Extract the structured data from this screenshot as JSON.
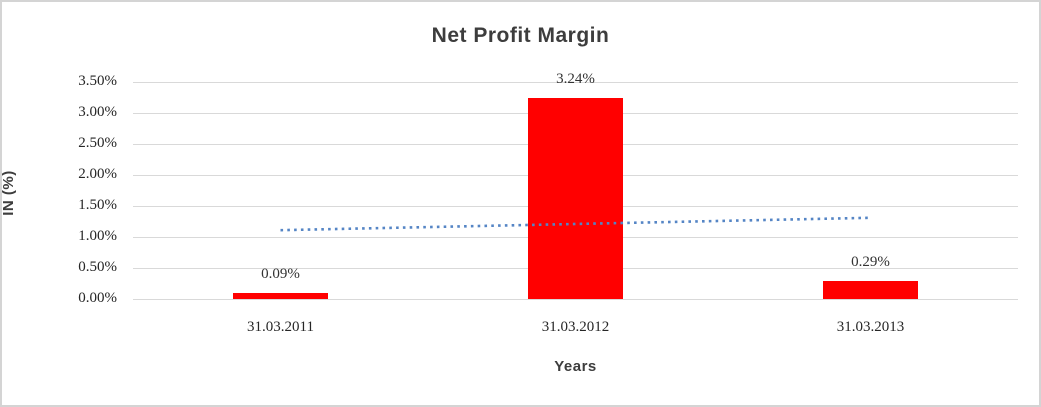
{
  "window": {
    "background_color": "#FFFFFF",
    "border_color": "#D4D4D4"
  },
  "chart_data": {
    "type": "bar",
    "title": "Net Profit Margin",
    "xlabel": "Years",
    "ylabel": "IN (%)",
    "categories": [
      "31.03.2011",
      "31.03.2012",
      "31.03.2013"
    ],
    "values": [
      0.09,
      3.24,
      0.29
    ],
    "data_labels": [
      "0.09%",
      "3.24%",
      "0.29%"
    ],
    "ylim": [
      0,
      3.5
    ],
    "ytick_step": 0.5,
    "ytick_labels": [
      "0.00%",
      "0.50%",
      "1.00%",
      "1.50%",
      "2.00%",
      "2.50%",
      "3.00%",
      "3.50%"
    ],
    "grid": true,
    "legend": "none",
    "bar_color": "#FF0000",
    "gridline_color": "#D9D9D9",
    "title_color": "#3D3D3D",
    "tick_text_color": "#262626",
    "trendline": {
      "type": "linear",
      "style": "dotted",
      "color": "#5585C5",
      "start_value": 1.11,
      "end_value": 1.31
    }
  }
}
